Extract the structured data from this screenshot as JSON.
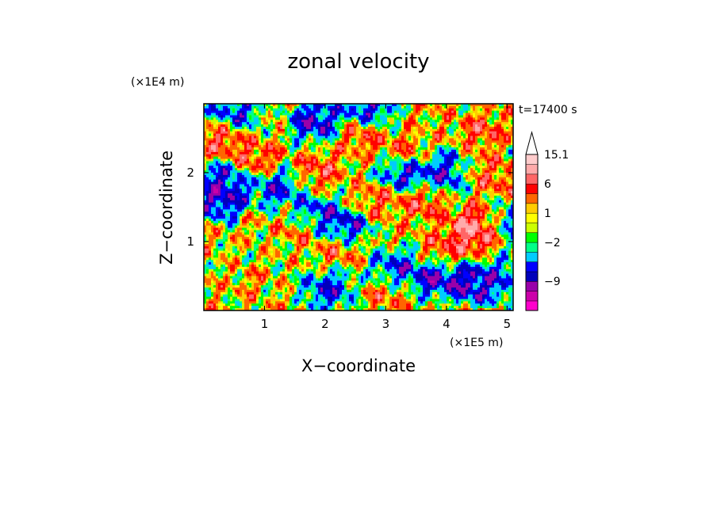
{
  "chart_data": {
    "type": "heatmap",
    "title": "zonal velocity",
    "xlabel": "X−coordinate",
    "ylabel": "Z−coordinate",
    "x_unit": "(×1E5 m)",
    "y_unit": "(×1E4 m)",
    "time_label": "t=17400 s",
    "xlim": [
      0,
      5.1
    ],
    "ylim": [
      0,
      3.0
    ],
    "x_ticks": [
      1,
      2,
      3,
      4,
      5
    ],
    "x_tick_labels": [
      "1",
      "2",
      "3",
      "4",
      "5"
    ],
    "y_ticks": [
      1,
      2
    ],
    "y_tick_labels": [
      "1",
      "2"
    ],
    "colorbar": {
      "colors": [
        "#ff00cc",
        "#cc00aa",
        "#9900aa",
        "#0000bb",
        "#0000ff",
        "#00ccff",
        "#00ff88",
        "#00ff00",
        "#ccff00",
        "#ffff00",
        "#ffcc00",
        "#ff6600",
        "#ff0000",
        "#ff6666",
        "#ffaaaa",
        "#ffcccc"
      ],
      "labels": [
        {
          "value_index": 15,
          "text": "15.1"
        },
        {
          "value_index": 12,
          "text": "6"
        },
        {
          "value_index": 9,
          "text": "1"
        },
        {
          "value_index": 6,
          "text": "−2"
        },
        {
          "value_index": 2,
          "text": "−9"
        }
      ]
    },
    "features": [
      {
        "x": 4.4,
        "z": 1.1,
        "v": 9
      },
      {
        "x": 4.55,
        "z": 1.25,
        "v": 10
      },
      {
        "x": 3.95,
        "z": 0.85,
        "v": 6
      },
      {
        "x": 0.3,
        "z": 2.5,
        "v": 7
      },
      {
        "x": 0.9,
        "z": 2.2,
        "v": 6
      },
      {
        "x": 1.9,
        "z": 2.05,
        "v": 6
      },
      {
        "x": 2.6,
        "z": 2.55,
        "v": 6
      },
      {
        "x": 3.3,
        "z": 2.3,
        "v": 5
      },
      {
        "x": 4.6,
        "z": 2.6,
        "v": 6
      },
      {
        "x": 4.9,
        "z": 1.9,
        "v": 5
      },
      {
        "x": 1.6,
        "z": 1.2,
        "v": 6
      },
      {
        "x": 2.2,
        "z": 0.9,
        "v": 5
      },
      {
        "x": 3.6,
        "z": 1.55,
        "v": 6
      },
      {
        "x": 2.85,
        "z": 1.6,
        "v": 5
      },
      {
        "x": 0.25,
        "z": 1.6,
        "v": -9
      },
      {
        "x": 0.35,
        "z": 1.85,
        "v": -8
      },
      {
        "x": 1.2,
        "z": 1.8,
        "v": -7
      },
      {
        "x": 1.8,
        "z": 1.35,
        "v": -9
      },
      {
        "x": 2.3,
        "z": 1.2,
        "v": -9
      },
      {
        "x": 1.85,
        "z": 2.75,
        "v": -9
      },
      {
        "x": 2.7,
        "z": 2.9,
        "v": -8
      },
      {
        "x": 3.3,
        "z": 2.0,
        "v": -9
      },
      {
        "x": 3.85,
        "z": 0.5,
        "v": -10
      },
      {
        "x": 4.45,
        "z": 0.4,
        "v": -10
      },
      {
        "x": 4.0,
        "z": 2.0,
        "v": -8
      },
      {
        "x": 0.5,
        "z": 2.85,
        "v": -7
      },
      {
        "x": 2.05,
        "z": 0.3,
        "v": -7
      },
      {
        "x": 3.2,
        "z": 0.6,
        "v": -7
      },
      {
        "x": 4.95,
        "z": 0.45,
        "v": -6
      },
      {
        "x": 4.95,
        "z": 1.3,
        "v": -6
      },
      {
        "x": 0.8,
        "z": 0.4,
        "v": 3
      },
      {
        "x": 3.0,
        "z": 0.2,
        "v": 4
      },
      {
        "x": 1.4,
        "z": 0.8,
        "v": 1
      },
      {
        "x": 0.1,
        "z": 1.0,
        "v": 2
      },
      {
        "x": 4.6,
        "z": 2.0,
        "v": 4
      }
    ]
  }
}
